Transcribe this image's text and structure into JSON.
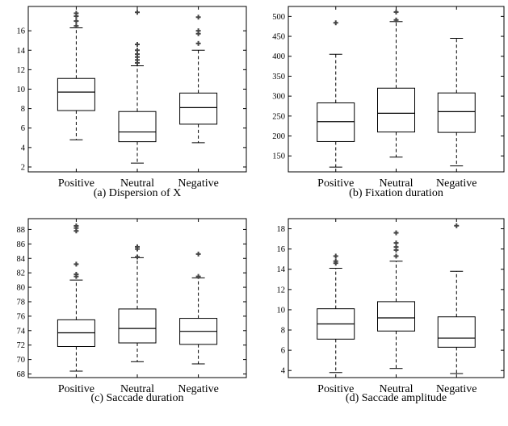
{
  "chart_data": [
    {
      "type": "box",
      "caption": "(a) Dispersion of X",
      "categories": [
        "Positive",
        "Neutral",
        "Negative"
      ],
      "ylim": [
        1.5,
        18.5
      ],
      "yticks": [
        2,
        4,
        6,
        8,
        10,
        12,
        14,
        16
      ],
      "boxes": [
        {
          "category": "Positive",
          "whisker_low": 4.8,
          "q1": 7.8,
          "median": 9.7,
          "q3": 11.1,
          "whisker_high": 16.3,
          "outliers": [
            16.5,
            17.0,
            17.5,
            17.8
          ]
        },
        {
          "category": "Neutral",
          "whisker_low": 2.4,
          "q1": 4.6,
          "median": 5.6,
          "q3": 7.7,
          "whisker_high": 12.4,
          "outliers": [
            12.7,
            13.0,
            13.3,
            13.6,
            14.0,
            14.6,
            17.9
          ]
        },
        {
          "category": "Negative",
          "whisker_low": 4.5,
          "q1": 6.4,
          "median": 8.1,
          "q3": 9.6,
          "whisker_high": 14.0,
          "outliers": [
            14.7,
            15.7,
            16.0,
            17.4
          ]
        }
      ]
    },
    {
      "type": "box",
      "caption": "(b)  Fixation duration",
      "categories": [
        "Positive",
        "Neutral",
        "Negative"
      ],
      "ylim": [
        110,
        525
      ],
      "yticks": [
        150,
        200,
        250,
        300,
        350,
        400,
        450,
        500
      ],
      "boxes": [
        {
          "category": "Positive",
          "whisker_low": 122,
          "q1": 186,
          "median": 236,
          "q3": 283,
          "whisker_high": 405,
          "outliers": [
            484
          ]
        },
        {
          "category": "Neutral",
          "whisker_low": 147,
          "q1": 210,
          "median": 257,
          "q3": 320,
          "whisker_high": 487,
          "outliers": [
            491,
            511
          ]
        },
        {
          "category": "Negative",
          "whisker_low": 125,
          "q1": 209,
          "median": 261,
          "q3": 308,
          "whisker_high": 445,
          "outliers": []
        }
      ]
    },
    {
      "type": "box",
      "caption": "(c) Saccade duration",
      "categories": [
        "Positive",
        "Neutral",
        "Negative"
      ],
      "ylim": [
        67.5,
        89.5
      ],
      "yticks": [
        68,
        70,
        72,
        74,
        76,
        78,
        80,
        82,
        84,
        86,
        88
      ],
      "boxes": [
        {
          "category": "Positive",
          "whisker_low": 68.4,
          "q1": 71.8,
          "median": 73.7,
          "q3": 75.5,
          "whisker_high": 81.0,
          "outliers": [
            81.5,
            81.8,
            83.2,
            87.8,
            88.2,
            88.5
          ]
        },
        {
          "category": "Neutral",
          "whisker_low": 69.7,
          "q1": 72.3,
          "median": 74.3,
          "q3": 77.0,
          "whisker_high": 84.1,
          "outliers": [
            84.2,
            85.3,
            85.6
          ]
        },
        {
          "category": "Negative",
          "whisker_low": 69.4,
          "q1": 72.1,
          "median": 73.9,
          "q3": 75.7,
          "whisker_high": 81.3,
          "outliers": [
            81.5,
            84.6
          ]
        }
      ]
    },
    {
      "type": "box",
      "caption": "(d) Saccade amplitude",
      "categories": [
        "Positive",
        "Neutral",
        "Negative"
      ],
      "ylim": [
        3.3,
        19.0
      ],
      "yticks": [
        4,
        6,
        8,
        10,
        12,
        14,
        16,
        18
      ],
      "boxes": [
        {
          "category": "Positive",
          "whisker_low": 3.8,
          "q1": 7.1,
          "median": 8.6,
          "q3": 10.1,
          "whisker_high": 14.1,
          "outliers": [
            14.6,
            14.8,
            15.3
          ]
        },
        {
          "category": "Neutral",
          "whisker_low": 4.2,
          "q1": 7.9,
          "median": 9.2,
          "q3": 10.8,
          "whisker_high": 14.8,
          "outliers": [
            15.3,
            15.9,
            16.2,
            16.6,
            17.6
          ]
        },
        {
          "category": "Negative",
          "whisker_low": 3.7,
          "q1": 6.3,
          "median": 7.2,
          "q3": 9.3,
          "whisker_high": 13.8,
          "outliers": [
            18.3
          ]
        }
      ]
    }
  ]
}
